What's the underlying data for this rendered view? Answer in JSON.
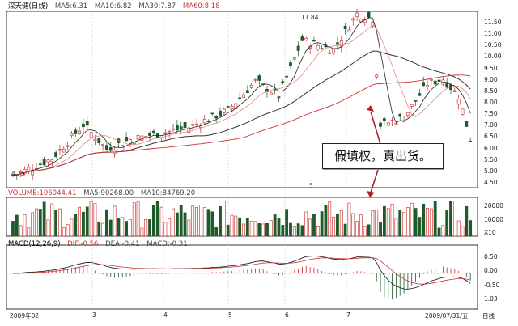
{
  "window": {
    "stock_name": "深天健(日线)"
  },
  "price_header": {
    "ma5": "MA5:6.31",
    "ma10": "MA10:6.82",
    "ma30": "MA30:7.87",
    "ma60": "MA60:8.18"
  },
  "volume_header": {
    "volume": "VOLUME:106044.41",
    "ma5": "MA5:90268.00",
    "ma10": "MA10:84769.20"
  },
  "macd_header": {
    "title": "MACD(12,26,9)",
    "dif": "DIF:-0.56",
    "dea": "DEA:-0.41",
    "macd": "MACD:-0.31"
  },
  "annotations": {
    "high_label": "11.84",
    "low_label": "4.75",
    "callout": "假填权，真出货。",
    "small_mark": "5"
  },
  "price_axis": [
    "11.50",
    "11.00",
    "10.50",
    "10.00",
    "9.50",
    "9.00",
    "8.50",
    "8.00",
    "7.50",
    "7.00",
    "6.50",
    "6.00",
    "5.50",
    "5.00",
    "4.50"
  ],
  "volume_axis": [
    "20000",
    "10000",
    "X10"
  ],
  "macd_axis": [
    "0.50",
    "0.00",
    "-0.50",
    "1.03"
  ],
  "x_axis": {
    "start": "2009年02",
    "months": [
      "3",
      "4",
      "5",
      "6",
      "7"
    ],
    "end_date": "2009/07/31/五",
    "right_tag": "日线"
  },
  "colors": {
    "up": "#cc2222",
    "down": "#1f5a2a",
    "ma5": "#222222",
    "ma10": "#e08a8a",
    "ma30": "#333333",
    "ma60": "#cc3333",
    "dif": "#111111",
    "dea": "#cc3333",
    "callout_arrow": "#b02020"
  }
}
